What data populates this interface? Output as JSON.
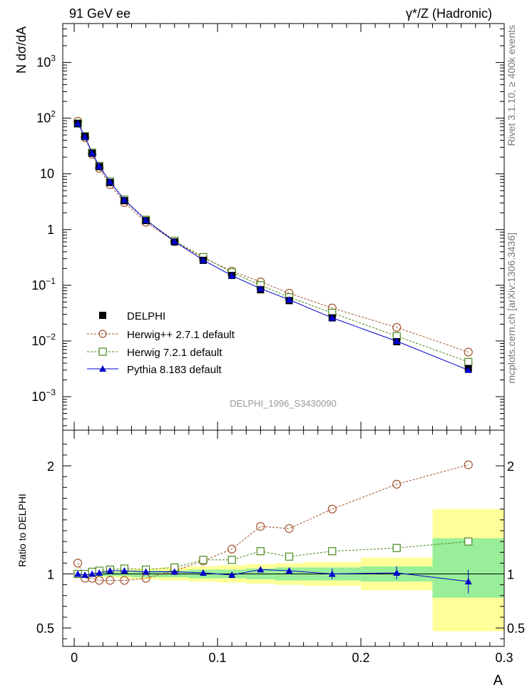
{
  "header": {
    "left": "91 GeV ee",
    "right": "γ*/Z (Hadronic)"
  },
  "side_text": {
    "rivet": "Rivet 3.1.10, ≥ 400k events",
    "mcplots": "mcplots.cern.ch [arXiv:1306.3436]"
  },
  "watermark": "DELPHI_1996_S3430090",
  "colors": {
    "data": "#000000",
    "herwigpp": "#a0522d",
    "herwig7": "#4a8a1c",
    "pythia": "#0000cc",
    "band_outer": "#ffff99",
    "band_inner": "#99ee99"
  },
  "chart_data": [
    {
      "type": "line",
      "name": "main",
      "ylabel": "N dσ/dA",
      "xlabel": "A",
      "yscale": "log",
      "xlim": [
        -0.008,
        0.3
      ],
      "ylim": [
        0.00025,
        5000
      ],
      "y_ticks": [
        {
          "v": 0.001,
          "base": "10",
          "exp": "−3"
        },
        {
          "v": 0.01,
          "base": "10",
          "exp": "−2"
        },
        {
          "v": 0.1,
          "base": "10",
          "exp": "−1"
        },
        {
          "v": 1,
          "base": "1",
          "exp": ""
        },
        {
          "v": 10,
          "base": "10",
          "exp": ""
        },
        {
          "v": 100,
          "base": "10",
          "exp": "2"
        },
        {
          "v": 1000,
          "base": "10",
          "exp": "3"
        }
      ],
      "legend": [
        "DELPHI",
        "Herwig++ 2.7.1 default",
        "Herwig 7.2.1 default",
        "Pythia 8.183 default"
      ],
      "series": [
        {
          "name": "DELPHI",
          "style": "data",
          "x": [
            0.0025,
            0.0075,
            0.0125,
            0.0175,
            0.025,
            0.035,
            0.05,
            0.07,
            0.09,
            0.11,
            0.13,
            0.15,
            0.18,
            0.225,
            0.275
          ],
          "y": [
            80,
            47,
            23.5,
            13.5,
            7,
            3.3,
            1.45,
            0.6,
            0.28,
            0.15,
            0.083,
            0.053,
            0.026,
            0.0097,
            0.0032
          ]
        },
        {
          "name": "Herwig++ 2.7.1 default",
          "style": "herwigpp",
          "x": [
            0.0025,
            0.0075,
            0.0125,
            0.0175,
            0.025,
            0.035,
            0.05,
            0.07,
            0.09,
            0.11,
            0.13,
            0.15,
            0.18,
            0.225,
            0.275
          ],
          "y": [
            88,
            45,
            22.5,
            12.6,
            6.4,
            3.05,
            1.35,
            0.61,
            0.31,
            0.18,
            0.115,
            0.072,
            0.039,
            0.0175,
            0.0063
          ]
        },
        {
          "name": "Herwig 7.2.1 default",
          "style": "herwig7",
          "x": [
            0.0025,
            0.0075,
            0.0125,
            0.0175,
            0.025,
            0.035,
            0.05,
            0.07,
            0.09,
            0.11,
            0.13,
            0.15,
            0.18,
            0.225,
            0.275
          ],
          "y": [
            80,
            47.5,
            24,
            13.9,
            7.3,
            3.45,
            1.5,
            0.63,
            0.32,
            0.17,
            0.1,
            0.061,
            0.032,
            0.0122,
            0.0042
          ]
        },
        {
          "name": "Pythia 8.183 default",
          "style": "pythia",
          "x": [
            0.0025,
            0.0075,
            0.0125,
            0.0175,
            0.025,
            0.035,
            0.05,
            0.07,
            0.09,
            0.11,
            0.13,
            0.15,
            0.18,
            0.225,
            0.275
          ],
          "y": [
            80,
            46.5,
            23.5,
            13.7,
            7.2,
            3.4,
            1.48,
            0.61,
            0.283,
            0.149,
            0.087,
            0.055,
            0.026,
            0.0099,
            0.003
          ]
        }
      ]
    },
    {
      "type": "line",
      "name": "ratio",
      "ylabel": "Ratio to DELPHI",
      "xlabel": "A",
      "xlim": [
        -0.008,
        0.3
      ],
      "ylim": [
        0.33,
        2.33
      ],
      "y_ticks": [
        0.5,
        1,
        2
      ],
      "x_ticks": [
        "0",
        "0.1",
        "0.2",
        "0.3"
      ],
      "band_edges": [
        0,
        0.005,
        0.01,
        0.015,
        0.02,
        0.03,
        0.04,
        0.06,
        0.08,
        0.1,
        0.12,
        0.14,
        0.16,
        0.2,
        0.25,
        0.3
      ],
      "band_outer": [
        [
          0.97,
          1.03
        ],
        [
          0.97,
          1.03
        ],
        [
          0.97,
          1.03
        ],
        [
          0.97,
          1.03
        ],
        [
          0.97,
          1.03
        ],
        [
          0.96,
          1.04
        ],
        [
          0.95,
          1.05
        ],
        [
          0.94,
          1.06
        ],
        [
          0.93,
          1.07
        ],
        [
          0.92,
          1.08
        ],
        [
          0.91,
          1.09
        ],
        [
          0.9,
          1.1
        ],
        [
          0.89,
          1.11
        ],
        [
          0.85,
          1.15
        ],
        [
          0.47,
          1.6
        ]
      ],
      "band_inner": [
        [
          0.98,
          1.02
        ],
        [
          0.98,
          1.02
        ],
        [
          0.98,
          1.02
        ],
        [
          0.98,
          1.02
        ],
        [
          0.98,
          1.02
        ],
        [
          0.98,
          1.02
        ],
        [
          0.97,
          1.03
        ],
        [
          0.97,
          1.03
        ],
        [
          0.96,
          1.04
        ],
        [
          0.96,
          1.04
        ],
        [
          0.95,
          1.05
        ],
        [
          0.94,
          1.06
        ],
        [
          0.94,
          1.06
        ],
        [
          0.93,
          1.07
        ],
        [
          0.78,
          1.33
        ]
      ],
      "series": [
        {
          "name": "Herwig++ 2.7.1 default",
          "style": "herwigpp",
          "x": [
            0.0025,
            0.0075,
            0.0125,
            0.0175,
            0.025,
            0.035,
            0.05,
            0.07,
            0.09,
            0.11,
            0.13,
            0.15,
            0.18,
            0.225,
            0.275
          ],
          "y": [
            1.1,
            0.96,
            0.96,
            0.94,
            0.94,
            0.94,
            0.96,
            1.03,
            1.12,
            1.23,
            1.44,
            1.42,
            1.6,
            1.83,
            2.01
          ]
        },
        {
          "name": "Herwig 7.2.1 default",
          "style": "herwig7",
          "x": [
            0.0025,
            0.0075,
            0.0125,
            0.0175,
            0.025,
            0.035,
            0.05,
            0.07,
            0.09,
            0.11,
            0.13,
            0.15,
            0.18,
            0.225,
            0.275
          ],
          "y": [
            1.0,
            1.0,
            1.02,
            1.03,
            1.04,
            1.05,
            1.04,
            1.06,
            1.13,
            1.13,
            1.21,
            1.16,
            1.21,
            1.24,
            1.3
          ]
        },
        {
          "name": "Pythia 8.183 default",
          "style": "pythia",
          "x": [
            0.0025,
            0.0075,
            0.0125,
            0.0175,
            0.025,
            0.035,
            0.05,
            0.07,
            0.09,
            0.11,
            0.13,
            0.15,
            0.18,
            0.225,
            0.275
          ],
          "y": [
            1.0,
            0.99,
            1.0,
            1.01,
            1.03,
            1.03,
            1.02,
            1.02,
            1.01,
            0.99,
            1.04,
            1.03,
            1.0,
            1.01,
            0.93
          ],
          "err": [
            0.01,
            0.01,
            0.01,
            0.01,
            0.01,
            0.01,
            0.01,
            0.01,
            0.01,
            0.02,
            0.02,
            0.03,
            0.05,
            0.06,
            0.11
          ]
        }
      ]
    }
  ]
}
